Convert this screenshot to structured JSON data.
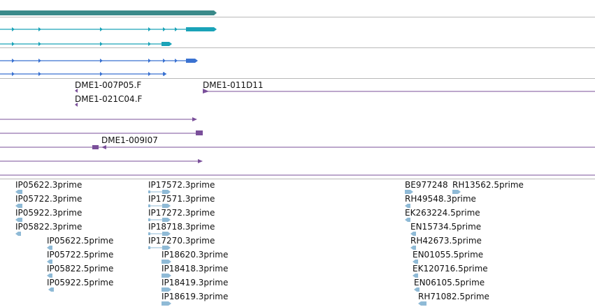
{
  "colors": {
    "gene_top": "#3a8a8a",
    "transcript_teal": "#1aa3b8",
    "transcript_blue": "#3a72d1",
    "clone": "#7a4f9a",
    "est": "#8fbad6",
    "separator": "#b9b9b9"
  },
  "clone_labels": [
    "DME1-007P05.F",
    "DME1-021C04.F",
    "DME1-011D11",
    "DME1-009I07"
  ],
  "est_columns": [
    {
      "column": "left",
      "labels": [
        "IP05622.3prime",
        "IP05722.3prime",
        "IP05922.3prime",
        "IP05822.3prime",
        "IP05622.5prime",
        "IP05722.5prime",
        "IP05822.5prime",
        "IP05922.5prime"
      ]
    },
    {
      "column": "middle",
      "labels": [
        "IP17572.3prime",
        "IP17571.3prime",
        "IP17272.3prime",
        "IP18718.3prime",
        "IP17270.3prime",
        "IP18620.3prime",
        "IP18418.3prime",
        "IP18419.3prime",
        "IP18619.3prime"
      ]
    },
    {
      "column": "right",
      "labels": [
        "BE977248",
        "RH13562.5prime",
        "RH49548.3prime",
        "EK263224.5prime",
        "EN15734.5prime",
        "RH42673.5prime",
        "EN01055.5prime",
        "EK120716.5prime",
        "EN06105.5prime",
        "RH71082.5prime"
      ]
    }
  ]
}
